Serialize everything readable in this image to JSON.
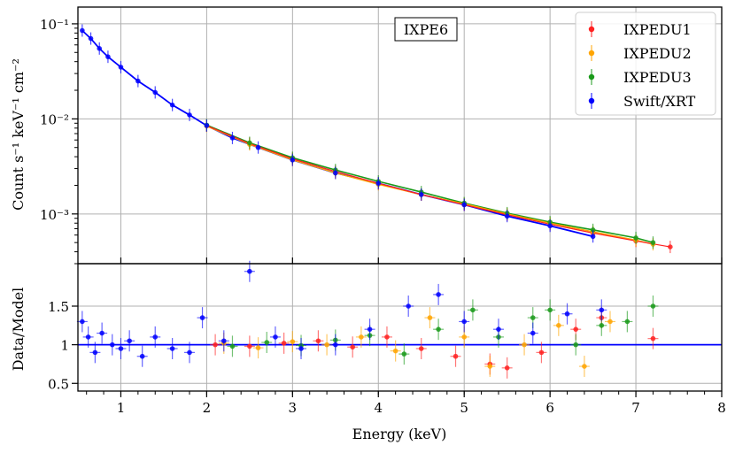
{
  "chart_data": [
    {
      "type": "scatter",
      "panel": "spectrum",
      "title": "",
      "annotation": "IXPE6",
      "ylabel": "Count s⁻¹ keV⁻¹ cm⁻²",
      "yscale": "log",
      "xlim": [
        0.5,
        8
      ],
      "ylim": [
        0.0003,
        0.15
      ],
      "yticks": [
        {
          "value": 0.1,
          "label": "10⁻¹"
        },
        {
          "value": 0.01,
          "label": "10⁻²"
        },
        {
          "value": 0.001,
          "label": "10⁻³"
        }
      ],
      "grid": true,
      "legend_position": "top-right",
      "series": [
        {
          "name": "IXPEDU1",
          "color": "#ff2020",
          "x": [
            2.0,
            2.5,
            3.0,
            3.5,
            4.0,
            4.5,
            5.0,
            5.5,
            6.0,
            6.5,
            7.0,
            7.4
          ],
          "y": [
            0.0085,
            0.0055,
            0.0038,
            0.0028,
            0.0021,
            0.0016,
            0.00125,
            0.00098,
            0.00078,
            0.00063,
            0.00052,
            0.00045
          ]
        },
        {
          "name": "IXPEDU2",
          "color": "#ffa500",
          "x": [
            2.0,
            2.5,
            3.0,
            3.5,
            4.0,
            4.5,
            5.0,
            5.5,
            6.0,
            6.5,
            7.0,
            7.2
          ],
          "y": [
            0.0084,
            0.0054,
            0.0037,
            0.0027,
            0.00205,
            0.0016,
            0.00128,
            0.001,
            0.0008,
            0.00065,
            0.00053,
            0.00048
          ]
        },
        {
          "name": "IXPEDU3",
          "color": "#1a9a1a",
          "x": [
            2.0,
            2.5,
            3.0,
            3.5,
            4.0,
            4.5,
            5.0,
            5.5,
            6.0,
            6.5,
            7.0,
            7.2
          ],
          "y": [
            0.0086,
            0.0056,
            0.0039,
            0.0029,
            0.0022,
            0.0017,
            0.0013,
            0.00102,
            0.00082,
            0.00068,
            0.00056,
            0.0005
          ]
        },
        {
          "name": "Swift/XRT",
          "color": "#0000ff",
          "x": [
            0.55,
            0.65,
            0.75,
            0.85,
            1.0,
            1.2,
            1.4,
            1.6,
            1.8,
            2.0,
            2.3,
            2.6,
            3.0,
            3.5,
            4.0,
            4.5,
            5.0,
            5.5,
            6.0,
            6.5
          ],
          "y": [
            0.085,
            0.07,
            0.055,
            0.045,
            0.035,
            0.025,
            0.019,
            0.014,
            0.011,
            0.0085,
            0.0063,
            0.005,
            0.0037,
            0.0027,
            0.0021,
            0.0016,
            0.00125,
            0.00095,
            0.00075,
            0.00058
          ]
        }
      ]
    },
    {
      "type": "scatter",
      "panel": "residuals",
      "xlabel": "Energy (keV)",
      "ylabel": "Data/Model",
      "xlim": [
        0.5,
        8
      ],
      "ylim": [
        0.4,
        2.05
      ],
      "xticks": [
        1,
        2,
        3,
        4,
        5,
        6,
        7,
        8
      ],
      "yticks": [
        0.5,
        1,
        1.5
      ],
      "reference_line": 1.0,
      "grid": true,
      "series": [
        {
          "name": "IXPEDU1",
          "x": [
            2.1,
            2.5,
            2.9,
            3.3,
            3.7,
            4.1,
            4.5,
            4.9,
            5.3,
            5.5,
            5.9,
            6.3,
            6.6,
            7.2
          ],
          "y": [
            1.0,
            0.98,
            1.02,
            1.05,
            0.97,
            1.1,
            0.95,
            0.85,
            0.75,
            0.7,
            0.9,
            1.2,
            1.35,
            1.08
          ]
        },
        {
          "name": "IXPEDU2",
          "x": [
            2.2,
            2.6,
            3.0,
            3.4,
            3.8,
            4.2,
            4.6,
            5.0,
            5.3,
            5.7,
            6.1,
            6.4,
            6.7
          ],
          "y": [
            1.02,
            0.96,
            1.04,
            1.0,
            1.1,
            0.92,
            1.35,
            1.1,
            0.72,
            1.0,
            1.25,
            0.72,
            1.3
          ]
        },
        {
          "name": "IXPEDU3",
          "x": [
            2.3,
            2.7,
            3.1,
            3.5,
            3.9,
            4.3,
            4.7,
            5.1,
            5.4,
            5.8,
            6.0,
            6.3,
            6.6,
            6.9,
            7.2
          ],
          "y": [
            0.98,
            1.03,
            0.99,
            1.06,
            1.12,
            0.88,
            1.2,
            1.45,
            1.1,
            1.35,
            1.45,
            1.0,
            1.25,
            1.3,
            1.5
          ]
        },
        {
          "name": "Swift/XRT",
          "x": [
            0.55,
            0.62,
            0.7,
            0.78,
            0.9,
            1.0,
            1.1,
            1.25,
            1.4,
            1.6,
            1.8,
            1.95,
            2.2,
            2.5,
            2.8,
            3.1,
            3.5,
            3.9,
            4.35,
            4.7,
            5.0,
            5.4,
            5.8,
            6.2,
            6.6
          ],
          "y": [
            1.3,
            1.1,
            0.9,
            1.15,
            1.0,
            0.95,
            1.05,
            0.85,
            1.1,
            0.95,
            0.9,
            1.35,
            1.05,
            1.95,
            1.1,
            0.95,
            1.0,
            1.2,
            1.5,
            1.65,
            1.3,
            1.2,
            1.15,
            1.4,
            1.45
          ]
        }
      ]
    }
  ]
}
